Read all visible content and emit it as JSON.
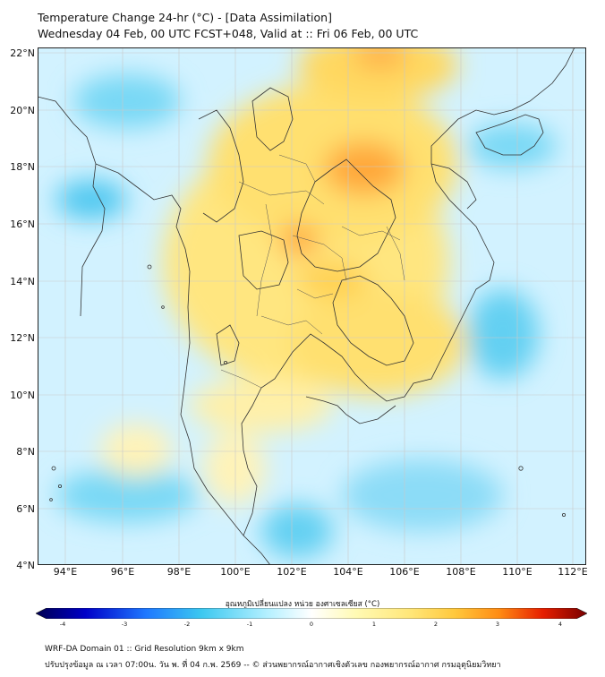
{
  "title": {
    "line1": "Temperature Change 24-hr (°C) - [Data Assimilation]",
    "line2": "Wednesday 04 Feb, 00 UTC FCST+048, Valid at :: Fri 06 Feb, 00 UTC"
  },
  "axes": {
    "lat_labels": [
      "22°N",
      "20°N",
      "18°N",
      "16°N",
      "14°N",
      "12°N",
      "10°N",
      "8°N",
      "6°N",
      "4°N"
    ],
    "lon_labels": [
      "94°E",
      "96°E",
      "98°E",
      "100°E",
      "102°E",
      "104°E",
      "106°E",
      "108°E",
      "110°E",
      "112°E"
    ]
  },
  "colorbar": {
    "title": "อุณหภูมิเปลี่ยนแปลง หน่วย องศาเซลเซียส (°C)",
    "ticks": [
      "-4",
      "-3",
      "-2",
      "-1",
      "0",
      "1",
      "2",
      "3",
      "4"
    ],
    "range": [
      -4,
      4
    ],
    "stops": [
      "#000050",
      "#0000c8",
      "#1e78ff",
      "#3cc8f0",
      "#b4f0ff",
      "#ffffff",
      "#fffab4",
      "#ffe678",
      "#ffc83c",
      "#ff8c14",
      "#e61e00",
      "#780000"
    ]
  },
  "footer": {
    "line1": "WRF-DA Domain 01 :: Grid Resolution 9km x 9km",
    "line2": "ปรับปรุงข้อมูล ณ เวลา 07:00น. วัน พ. ที่ 04 ก.พ. 2569 -- © ส่วนพยากรณ์อากาศเชิงตัวเลข กองพยากรณ์อากาศ กรมอุตุนิยมวิทยา"
  },
  "colors": {
    "ocean_base": "#c8f0ff",
    "land_warm": "#ffe070",
    "hot": "#ff9a30",
    "cool": "#50c8f0",
    "coastline": "#333333"
  }
}
